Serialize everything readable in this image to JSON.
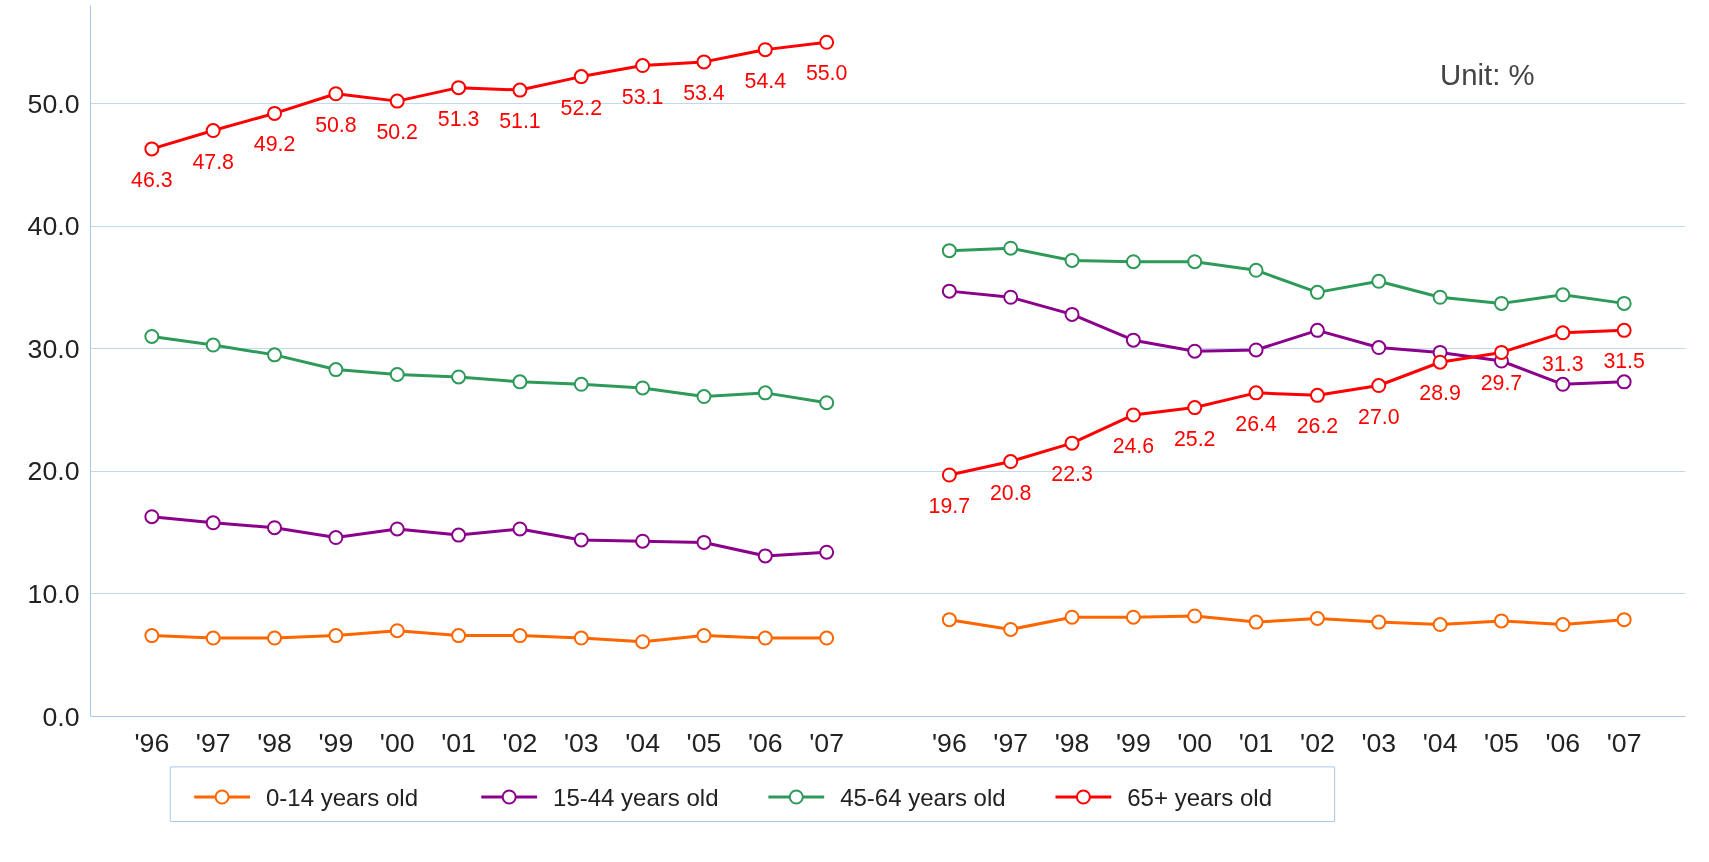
{
  "chart_data": {
    "type": "line",
    "categories": [
      "'96",
      "'97",
      "'98",
      "'99",
      "'00",
      "'01",
      "'02",
      "'03",
      "'04",
      "'05",
      "'06",
      "'07",
      null,
      "'96",
      "'97",
      "'98",
      "'99",
      "'00",
      "'01",
      "'02",
      "'03",
      "'04",
      "'05",
      "'06",
      "'07"
    ],
    "series": [
      {
        "name": "0-14 years old",
        "color": "#ff6600",
        "values": [
          6.6,
          6.4,
          6.4,
          6.6,
          7.0,
          6.6,
          6.6,
          6.4,
          6.1,
          6.6,
          6.4,
          6.4,
          null,
          7.9,
          7.1,
          8.1,
          8.1,
          8.2,
          7.7,
          8.0,
          7.7,
          7.5,
          7.8,
          7.5,
          7.9
        ]
      },
      {
        "name": "15-44 years old",
        "color": "#8b008b",
        "values": [
          16.3,
          15.8,
          15.4,
          14.6,
          15.3,
          14.8,
          15.3,
          14.4,
          14.3,
          14.2,
          13.1,
          13.4,
          null,
          34.7,
          34.2,
          32.8,
          30.7,
          29.8,
          29.9,
          31.5,
          30.1,
          29.7,
          29.0,
          27.1,
          27.3
        ]
      },
      {
        "name": "45-64 years old",
        "color": "#2e9a5a",
        "values": [
          31.0,
          30.3,
          29.5,
          28.3,
          27.9,
          27.7,
          27.3,
          27.1,
          26.8,
          26.1,
          26.4,
          25.6,
          null,
          38.0,
          38.2,
          37.2,
          37.1,
          37.1,
          36.4,
          34.6,
          35.5,
          34.2,
          33.7,
          34.4,
          33.7
        ]
      },
      {
        "name": "65+ years old",
        "color": "#ff0000",
        "values": [
          46.3,
          47.8,
          49.2,
          50.8,
          50.2,
          51.3,
          51.1,
          52.2,
          53.1,
          53.4,
          54.4,
          55.0,
          null,
          19.7,
          20.8,
          22.3,
          24.6,
          25.2,
          26.4,
          26.2,
          27.0,
          28.9,
          29.7,
          31.3,
          31.5
        ],
        "value_labels": [
          "46.3",
          "47.8",
          "49.2",
          "50.8",
          "50.2",
          "51.3",
          "51.1",
          "52.2",
          "53.1",
          "53.4",
          "54.4",
          "55.0",
          null,
          "19.7",
          "20.8",
          "22.3",
          "24.6",
          "25.2",
          "26.4",
          "26.2",
          "27.0",
          "28.9",
          "29.7",
          "31.3",
          "31.5"
        ]
      }
    ],
    "ylim": [
      0,
      58
    ],
    "yticks": [
      {
        "value": 0,
        "label": "0.0"
      },
      {
        "value": 10,
        "label": "10.0"
      },
      {
        "value": 20,
        "label": "20.0"
      },
      {
        "value": 30,
        "label": "30.0"
      },
      {
        "value": 40,
        "label": "40.0"
      },
      {
        "value": 50,
        "label": "50.0"
      }
    ],
    "annotations": [
      "Unit: %"
    ],
    "grid": "y",
    "legend": "bottom",
    "marker": "circle",
    "line_style": "solid"
  }
}
